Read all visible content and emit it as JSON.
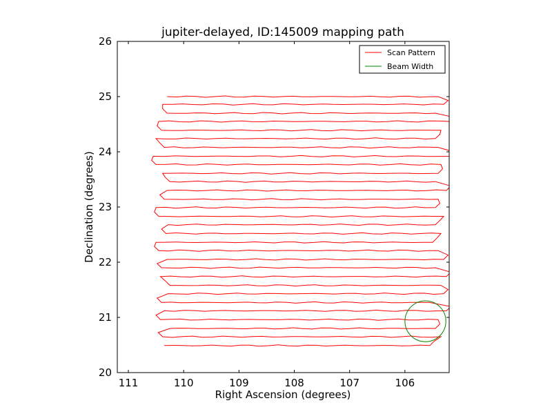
{
  "chart_data": {
    "type": "line",
    "title": "jupiter-delayed, ID:145009 mapping path",
    "xlabel": "Right Ascension (degrees)",
    "ylabel": "Declination (degrees)",
    "xlim": [
      111.2,
      105.2
    ],
    "ylim": [
      20,
      26
    ],
    "x_inverted": true,
    "xticks": [
      111,
      110,
      109,
      108,
      107,
      106
    ],
    "yticks": [
      20,
      21,
      22,
      23,
      24,
      25,
      26
    ],
    "legend": {
      "placement": "top-right",
      "entries": [
        {
          "label": "Scan Pattern",
          "color": "#ff0000"
        },
        {
          "label": "Beam Width",
          "color": "#008000"
        }
      ]
    },
    "series": [
      {
        "name": "Scan Pattern",
        "color": "#ff0000",
        "rows_dec": [
          20.49,
          20.65,
          20.8,
          20.96,
          21.12,
          21.27,
          21.43,
          21.58,
          21.74,
          21.9,
          22.05,
          22.21,
          22.36,
          22.52,
          22.68,
          22.83,
          22.99,
          23.14,
          23.3,
          23.46,
          23.61,
          23.77,
          23.92,
          24.08,
          24.24,
          24.39,
          24.55,
          24.7,
          24.86,
          25.0
        ],
        "west_turn_ra": [
          110.35,
          110.38,
          110.25,
          110.42,
          110.35,
          110.4,
          110.28,
          110.25,
          110.42,
          110.4,
          110.3,
          110.45,
          110.5,
          110.32,
          110.28,
          110.45,
          110.5,
          110.35,
          110.3,
          110.25,
          110.38,
          110.5,
          110.55,
          110.35,
          110.5,
          110.4,
          110.45,
          110.3,
          110.38,
          110.3
        ],
        "east_turn_ra": [
          105.55,
          105.35,
          105.45,
          105.4,
          105.25,
          105.55,
          105.3,
          105.35,
          105.25,
          105.45,
          105.3,
          105.4,
          105.5,
          105.35,
          105.45,
          105.3,
          105.45,
          105.4,
          105.25,
          105.45,
          105.4,
          105.35,
          105.2,
          105.4,
          105.45,
          105.35,
          105.2,
          105.45,
          105.3,
          105.4
        ]
      },
      {
        "name": "Beam Width",
        "color": "#008000",
        "center_ra": 105.63,
        "center_dec": 20.93,
        "radius_deg": 0.37
      }
    ]
  }
}
